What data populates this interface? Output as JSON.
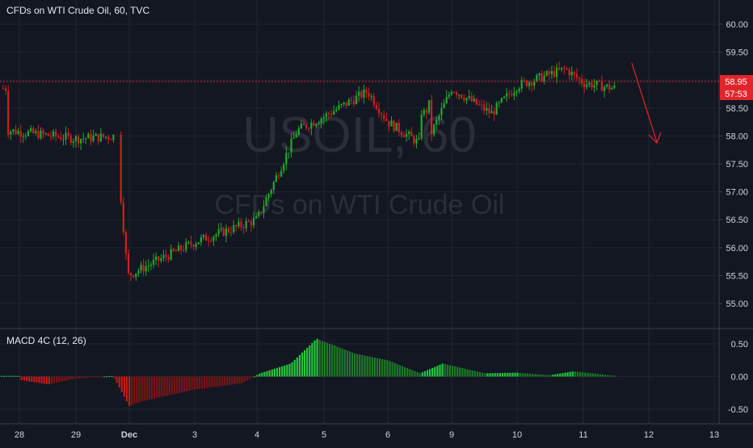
{
  "header": {
    "title": "CFDs on WTI Crude Oil, 60, TVC"
  },
  "watermark": {
    "symbol": "USOIL, 60",
    "description": "CFDs on WTI Crude Oil"
  },
  "price_badge": {
    "price": "58.95",
    "countdown": "57:53"
  },
  "indicator": {
    "label": "MACD 4C (12, 26)"
  },
  "colors": {
    "background": "#131722",
    "up": "#26a62b",
    "down": "#d11f1f",
    "macd_up_strong": "#22c93a",
    "macd_up_weak": "#1e7a2a",
    "macd_down_strong": "#c21a1a",
    "macd_down_weak": "#7a1515",
    "price_line": "#e3242b",
    "arrow": "#e3242b",
    "text": "#d1d4dc"
  },
  "chart_data": [
    {
      "type": "candlestick",
      "title": "CFDs on WTI Crude Oil, 60, TVC",
      "x_ticks": [
        "28",
        "29",
        "Dec",
        "3",
        "4",
        "5",
        "6",
        "9",
        "10",
        "11",
        "12",
        "13"
      ],
      "y_ticks": [
        "60.00",
        "59.50",
        "59.00",
        "58.50",
        "58.00",
        "57.50",
        "57.00",
        "56.50",
        "56.00",
        "55.50",
        "55.00"
      ],
      "ylim": [
        54.6,
        60.3
      ],
      "grid": true,
      "last_price": 58.95,
      "series_close_keypoints": [
        {
          "x": "28",
          "close": 58.1
        },
        {
          "x": "29",
          "close": 57.95
        },
        {
          "x": "29.9",
          "close": 58.0
        },
        {
          "x": "Dec",
          "close": 55.5
        },
        {
          "x": "3",
          "close": 56.1
        },
        {
          "x": "4",
          "close": 56.5
        },
        {
          "x": "4.6",
          "close": 58.1
        },
        {
          "x": "5",
          "close": 58.35
        },
        {
          "x": "5.5",
          "close": 58.8
        },
        {
          "x": "6",
          "close": 58.25
        },
        {
          "x": "6.5",
          "close": 57.8
        },
        {
          "x": "9",
          "close": 58.85
        },
        {
          "x": "9.7",
          "close": 58.4
        },
        {
          "x": "10",
          "close": 58.9
        },
        {
          "x": "10.7",
          "close": 59.2
        },
        {
          "x": "11",
          "close": 58.95
        },
        {
          "x": "11.4",
          "close": 58.85
        }
      ]
    },
    {
      "type": "bar",
      "title": "MACD 4C (12, 26)",
      "y_ticks": [
        "0.50",
        "0.00",
        "-0.50"
      ],
      "ylim": [
        -0.7,
        0.7
      ],
      "histogram_keypoints": [
        {
          "x": "28",
          "value": -0.05
        },
        {
          "x": "28.5",
          "value": -0.12
        },
        {
          "x": "29",
          "value": -0.03
        },
        {
          "x": "29.8",
          "value": 0.01
        },
        {
          "x": "Dec",
          "value": -0.45
        },
        {
          "x": "Dec+",
          "value": -0.38
        },
        {
          "x": "3",
          "value": -0.2
        },
        {
          "x": "4",
          "value": -0.1
        },
        {
          "x": "4.2",
          "value": 0.05
        },
        {
          "x": "4.7",
          "value": 0.2
        },
        {
          "x": "5",
          "value": 0.58
        },
        {
          "x": "5.5",
          "value": 0.35
        },
        {
          "x": "6",
          "value": 0.25
        },
        {
          "x": "6.7",
          "value": 0.05
        },
        {
          "x": "9",
          "value": 0.2
        },
        {
          "x": "9.6",
          "value": 0.05
        },
        {
          "x": "10",
          "value": 0.06
        },
        {
          "x": "10.5",
          "value": 0.02
        },
        {
          "x": "11",
          "value": 0.08
        },
        {
          "x": "11.4",
          "value": 0.01
        }
      ]
    }
  ]
}
